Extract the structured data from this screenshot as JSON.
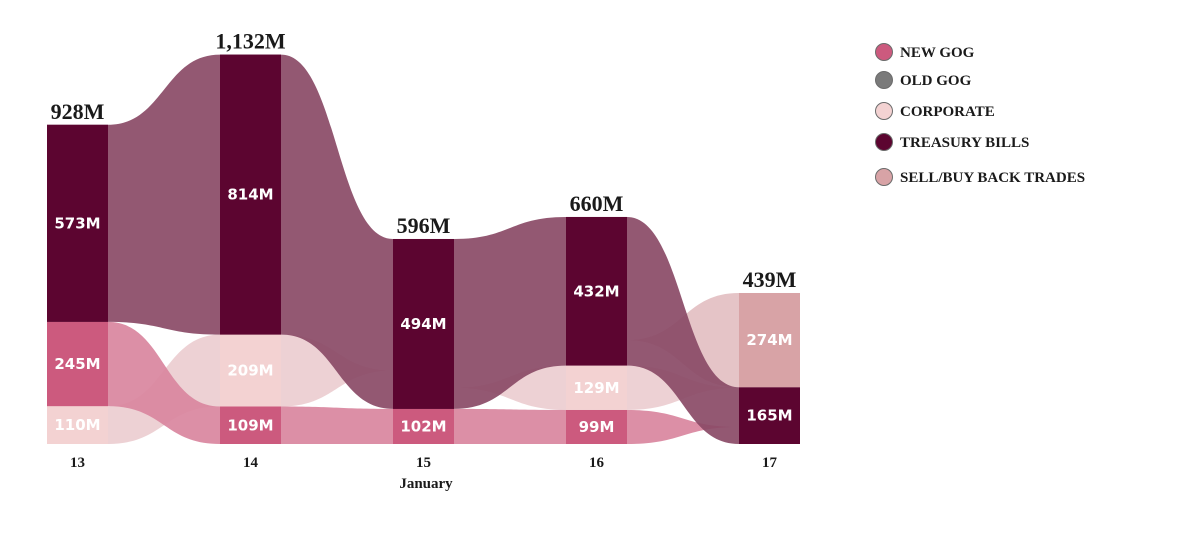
{
  "chart_data": {
    "type": "stacked-bar-ribbon",
    "xlabel": "January",
    "unit": "M",
    "categories": [
      "13",
      "14",
      "15",
      "16",
      "17"
    ],
    "totals": [
      928,
      1132,
      596,
      660,
      439
    ],
    "total_labels": [
      "928M",
      "1,132M",
      "596M",
      "660M",
      "439M"
    ],
    "legend": [
      {
        "key": "new_gog",
        "name": "NEW GOG",
        "color": "#cc5a7e"
      },
      {
        "key": "old_gog",
        "name": "OLD GOG",
        "color": "#7a7a7a"
      },
      {
        "key": "corporate",
        "name": "CORPORATE",
        "color": "#f3d2d2"
      },
      {
        "key": "treasury_bills",
        "name": "TREASURY BILLS",
        "color": "#5c0530"
      },
      {
        "key": "sell_buy_back",
        "name": "SELL/BUY BACK TRADES",
        "color": "#d8a3a6"
      }
    ],
    "columns": [
      {
        "category": "13",
        "segments": [
          {
            "series": "treasury_bills",
            "value": 573,
            "label": "573M",
            "color": "#5c0530"
          },
          {
            "series": "new_gog",
            "value": 245,
            "label": "245M",
            "color": "#cc5a7e"
          },
          {
            "series": "corporate",
            "value": 110,
            "label": "110M",
            "color": "#f3d2d2"
          }
        ]
      },
      {
        "category": "14",
        "segments": [
          {
            "series": "treasury_bills",
            "value": 814,
            "label": "814M",
            "color": "#5c0530"
          },
          {
            "series": "corporate",
            "value": 209,
            "label": "209M",
            "color": "#f3d2d2"
          },
          {
            "series": "new_gog",
            "value": 109,
            "label": "109M",
            "color": "#cc5a7e"
          }
        ]
      },
      {
        "category": "15",
        "segments": [
          {
            "series": "treasury_bills",
            "value": 494,
            "label": "494M",
            "color": "#5c0530"
          },
          {
            "series": "new_gog",
            "value": 102,
            "label": "102M",
            "color": "#cc5a7e"
          }
        ]
      },
      {
        "category": "16",
        "segments": [
          {
            "series": "treasury_bills",
            "value": 432,
            "label": "432M",
            "color": "#5c0530"
          },
          {
            "series": "corporate",
            "value": 129,
            "label": "129M",
            "color": "#f3d2d2"
          },
          {
            "series": "new_gog",
            "value": 99,
            "label": "99M",
            "color": "#cc5a7e"
          }
        ]
      },
      {
        "category": "17",
        "segments": [
          {
            "series": "sell_buy_back",
            "value": 274,
            "label": "274M",
            "color": "#d8a3a6"
          },
          {
            "series": "treasury_bills",
            "value": 165,
            "label": "165M",
            "color": "#5c0530"
          }
        ]
      }
    ],
    "ribbon_colors": {
      "treasury_bills": "#8a4a66",
      "new_gog": "#d9859e",
      "corporate": "#eccdd0",
      "sell_buy_back": "#e3bfc2"
    }
  }
}
